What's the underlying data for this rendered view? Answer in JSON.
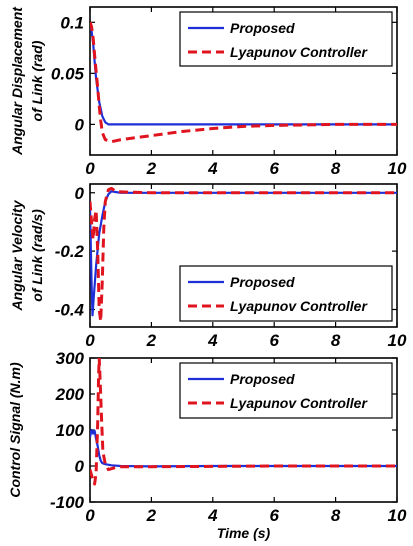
{
  "chart_data": [
    {
      "type": "line",
      "ylabel": [
        "Angular Displacement",
        "of Link (rad)"
      ],
      "xlabel": "",
      "xlim": [
        0,
        10
      ],
      "ylim": [
        -0.03,
        0.115
      ],
      "xticks": [
        "0",
        "2",
        "4",
        "6",
        "8",
        "10"
      ],
      "xtick_values": [
        0,
        2,
        4,
        6,
        8,
        10
      ],
      "yticks": [
        "0",
        "0.05",
        "0.1"
      ],
      "ytick_values": [
        0,
        0.05,
        0.1
      ],
      "legend_position": "top-right",
      "series": [
        {
          "name": "Proposed",
          "color": "#1f2fd8",
          "style": "solid",
          "points": [
            [
              0,
              0.094
            ],
            [
              0.05,
              0.092
            ],
            [
              0.1,
              0.08
            ],
            [
              0.15,
              0.062
            ],
            [
              0.2,
              0.045
            ],
            [
              0.3,
              0.022
            ],
            [
              0.4,
              0.008
            ],
            [
              0.5,
              0.002
            ],
            [
              0.6,
              0.0
            ],
            [
              1,
              0.0
            ],
            [
              2,
              0.0
            ],
            [
              4,
              0.0
            ],
            [
              6,
              0.0
            ],
            [
              8,
              0.0
            ],
            [
              10,
              0.0
            ]
          ]
        },
        {
          "name": "Lyapunov Controller",
          "color": "#e0141e",
          "style": "dashed",
          "points": [
            [
              0,
              0.1
            ],
            [
              0.05,
              0.096
            ],
            [
              0.1,
              0.085
            ],
            [
              0.15,
              0.068
            ],
            [
              0.2,
              0.052
            ],
            [
              0.25,
              0.036
            ],
            [
              0.3,
              0.018
            ],
            [
              0.35,
              0.004
            ],
            [
              0.4,
              -0.008
            ],
            [
              0.5,
              -0.015
            ],
            [
              0.7,
              -0.017
            ],
            [
              1,
              -0.015
            ],
            [
              1.5,
              -0.013
            ],
            [
              2,
              -0.011
            ],
            [
              3,
              -0.007
            ],
            [
              4,
              -0.004
            ],
            [
              5,
              -0.002
            ],
            [
              6,
              -0.001
            ],
            [
              8,
              0.0
            ],
            [
              10,
              0.0
            ]
          ]
        }
      ]
    },
    {
      "type": "line",
      "ylabel": [
        "Angular Velocity",
        "of Link (rad/s)"
      ],
      "xlabel": "",
      "xlim": [
        0,
        10
      ],
      "ylim": [
        -0.46,
        0.03
      ],
      "xticks": [
        "0",
        "2",
        "4",
        "6",
        "8",
        "10"
      ],
      "xtick_values": [
        0,
        2,
        4,
        6,
        8,
        10
      ],
      "yticks": [
        "-0.4",
        "-0.2",
        "0"
      ],
      "ytick_values": [
        -0.4,
        -0.2,
        0
      ],
      "legend_position": "bottom-right",
      "series": [
        {
          "name": "Proposed",
          "color": "#1f2fd8",
          "style": "solid",
          "points": [
            [
              0,
              -0.05
            ],
            [
              0.05,
              -0.3
            ],
            [
              0.08,
              -0.42
            ],
            [
              0.12,
              -0.36
            ],
            [
              0.2,
              -0.25
            ],
            [
              0.3,
              -0.14
            ],
            [
              0.4,
              -0.08
            ],
            [
              0.5,
              -0.03
            ],
            [
              0.6,
              -0.005
            ],
            [
              0.7,
              0.005
            ],
            [
              0.8,
              0.003
            ],
            [
              1,
              0.0
            ],
            [
              2,
              0.0
            ],
            [
              4,
              0.0
            ],
            [
              6,
              0.0
            ],
            [
              8,
              0.0
            ],
            [
              10,
              0.0
            ]
          ]
        },
        {
          "name": "Lyapunov Controller",
          "color": "#e0141e",
          "style": "dashed",
          "points": [
            [
              0,
              -0.03
            ],
            [
              0.05,
              -0.1
            ],
            [
              0.1,
              -0.16
            ],
            [
              0.15,
              -0.09
            ],
            [
              0.2,
              -0.06
            ],
            [
              0.25,
              -0.2
            ],
            [
              0.3,
              -0.4
            ],
            [
              0.35,
              -0.44
            ],
            [
              0.4,
              -0.3
            ],
            [
              0.45,
              -0.12
            ],
            [
              0.5,
              -0.03
            ],
            [
              0.6,
              0.01
            ],
            [
              0.7,
              0.015
            ],
            [
              0.8,
              0.008
            ],
            [
              1,
              0.003
            ],
            [
              2,
              0.0
            ],
            [
              4,
              0.0
            ],
            [
              6,
              0.0
            ],
            [
              8,
              0.0
            ],
            [
              10,
              0.0
            ]
          ]
        }
      ]
    },
    {
      "type": "line",
      "ylabel": [
        "Control Signal (N.m)"
      ],
      "xlabel": "Time (s)",
      "xlim": [
        0,
        10
      ],
      "ylim": [
        -100,
        300
      ],
      "xticks": [
        "0",
        "2",
        "4",
        "6",
        "8",
        "10"
      ],
      "xtick_values": [
        0,
        2,
        4,
        6,
        8,
        10
      ],
      "yticks": [
        "-100",
        "0",
        "100",
        "200",
        "300"
      ],
      "ytick_values": [
        -100,
        0,
        100,
        200,
        300
      ],
      "legend_position": "top-right",
      "series": [
        {
          "name": "Proposed",
          "color": "#1f2fd8",
          "style": "solid",
          "points": [
            [
              0,
              80
            ],
            [
              0.05,
              100
            ],
            [
              0.1,
              90
            ],
            [
              0.15,
              98
            ],
            [
              0.2,
              75
            ],
            [
              0.25,
              55
            ],
            [
              0.3,
              30
            ],
            [
              0.35,
              15
            ],
            [
              0.4,
              8
            ],
            [
              0.5,
              5
            ],
            [
              0.7,
              2
            ],
            [
              1,
              0
            ],
            [
              2,
              -1
            ],
            [
              4,
              0
            ],
            [
              6,
              0
            ],
            [
              8,
              0
            ],
            [
              10,
              0
            ]
          ]
        },
        {
          "name": "Lyapunov Controller",
          "color": "#e0141e",
          "style": "dashed",
          "points": [
            [
              0,
              -10
            ],
            [
              0.05,
              -25
            ],
            [
              0.1,
              -40
            ],
            [
              0.15,
              -50
            ],
            [
              0.2,
              -20
            ],
            [
              0.25,
              120
            ],
            [
              0.28,
              250
            ],
            [
              0.3,
              300
            ],
            [
              0.33,
              240
            ],
            [
              0.38,
              120
            ],
            [
              0.42,
              40
            ],
            [
              0.5,
              5
            ],
            [
              0.6,
              -10
            ],
            [
              0.8,
              -5
            ],
            [
              1,
              -2
            ],
            [
              2,
              -2
            ],
            [
              4,
              -1
            ],
            [
              6,
              0
            ],
            [
              8,
              0
            ],
            [
              10,
              0
            ]
          ]
        }
      ]
    }
  ]
}
